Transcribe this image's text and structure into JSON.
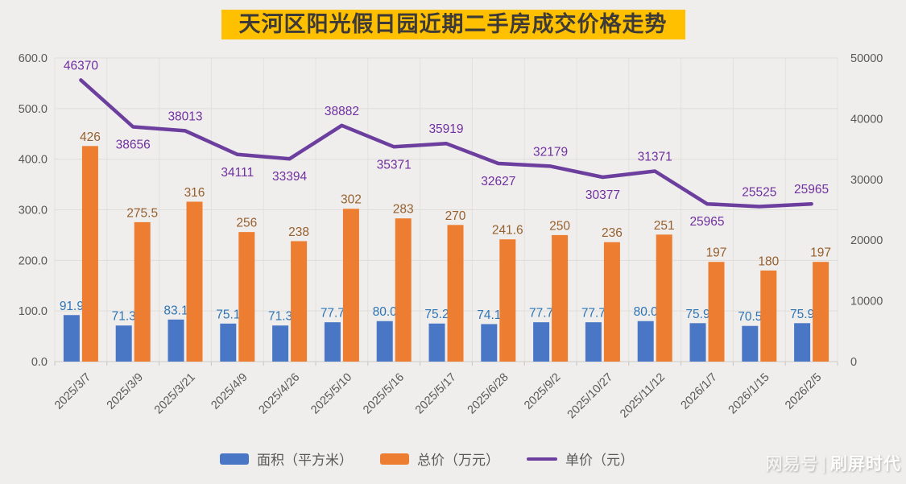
{
  "title": "天河区阳光假日园近期二手房成交价格走势",
  "watermark": {
    "brand": "网易号",
    "separator": "|",
    "name": "刷屏时代"
  },
  "legend": [
    {
      "label": "面积（平方米）",
      "color": "#4a76c6",
      "type": "bar"
    },
    {
      "label": "总价（万元）",
      "color": "#ed7d31",
      "type": "bar"
    },
    {
      "label": "单价（元）",
      "color": "#6c3f9f",
      "type": "line"
    }
  ],
  "chart_data": {
    "type": "bar+line combo",
    "title": "天河区阳光假日园近期二手房成交价格走势",
    "categories": [
      "2025/3/7",
      "2025/3/9",
      "2025/3/21",
      "2025/4/9",
      "2025/4/26",
      "2025/5/10",
      "2025/5/16",
      "2025/5/17",
      "2025/6/28",
      "2025/9/2",
      "2025/10/27",
      "2025/11/12",
      "2026/1/7",
      "2026/1/15",
      "2026/2/5"
    ],
    "series": [
      {
        "name": "面积（平方米）",
        "type": "bar",
        "axis": "left",
        "color": "#4a76c6",
        "label_color": "#2e75b6",
        "values": [
          91.9,
          71.3,
          83.1,
          75.1,
          71.3,
          77.7,
          80.0,
          75.2,
          74.1,
          77.7,
          77.7,
          80.0,
          75.9,
          70.5,
          75.9
        ],
        "labels": [
          "91.9",
          "71.3",
          "83.1",
          "75.1",
          "71.3",
          "77.7",
          "80.0",
          "75.2",
          "74.1",
          "77.7",
          "77.7",
          "80.0",
          "75.9",
          "70.5",
          "75.9"
        ]
      },
      {
        "name": "总价（万元）",
        "type": "bar",
        "axis": "left",
        "color": "#ed7d31",
        "label_color": "#96602f",
        "values": [
          426,
          275.5,
          316,
          256,
          238,
          302,
          283,
          270,
          241.6,
          250,
          236,
          251,
          197,
          180,
          197
        ],
        "labels": [
          "426",
          "275.5",
          "316",
          "256",
          "238",
          "302",
          "283",
          "270",
          "241.6",
          "250",
          "236",
          "251",
          "197",
          "180",
          "197"
        ]
      },
      {
        "name": "单价（元）",
        "type": "line",
        "axis": "right",
        "color": "#6c3f9f",
        "label_color": "#7030a0",
        "values": [
          46370,
          38656,
          38013,
          34111,
          33394,
          38882,
          35371,
          35919,
          32627,
          32179,
          30377,
          31371,
          25965,
          25525,
          25965
        ],
        "labels": [
          "46370",
          "38656",
          "38013",
          "34111",
          "33394",
          "38882",
          "35371",
          "35919",
          "32627",
          "32179",
          "30377",
          "31371",
          "25965",
          "25525",
          "25965"
        ],
        "label_side": [
          "above",
          "below",
          "above",
          "below",
          "below",
          "above",
          "below",
          "above",
          "below",
          "above",
          "below",
          "above",
          "below",
          "above",
          "above"
        ]
      }
    ],
    "left_axis": {
      "min": 0,
      "max": 600,
      "step": 100,
      "ticks": [
        "600.0",
        "500.0",
        "400.0",
        "300.0",
        "200.0",
        "100.0",
        "0.0"
      ]
    },
    "right_axis": {
      "min": 0,
      "max": 50000,
      "step": 10000,
      "ticks": [
        "50000",
        "40000",
        "30000",
        "20000",
        "10000",
        "0"
      ]
    },
    "grid": true,
    "legend_position": "bottom"
  }
}
